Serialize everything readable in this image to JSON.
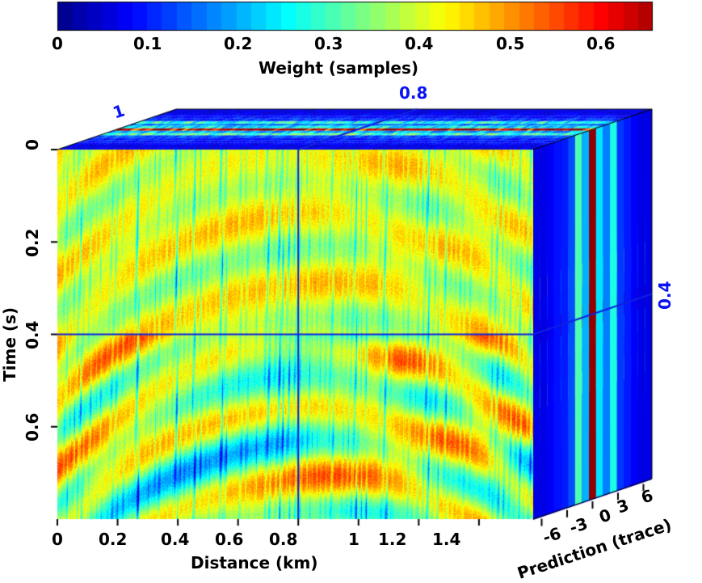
{
  "chart_data": {
    "type": "heatmap",
    "view": "3d-cube",
    "colormap": "jet",
    "colorbar": {
      "label": "Weight (samples)",
      "range": [
        0,
        0.66
      ],
      "ticks": [
        "0",
        "0.1",
        "0.2",
        "0.3",
        "0.4",
        "0.5",
        "0.6"
      ],
      "placement": "top"
    },
    "x_axis": {
      "label": "Distance (km)",
      "range": [
        0,
        1.58
      ],
      "ticks": [
        "0",
        "0.2",
        "0.4",
        "0.6",
        "0.8",
        "1",
        "1.2",
        "1.4"
      ]
    },
    "y_axis": {
      "label": "Time (s)",
      "range": [
        0,
        0.8
      ],
      "ticks": [
        "0",
        "0.2",
        "0.4",
        "0.6"
      ],
      "inverted": true
    },
    "z_axis": {
      "label": "Prediction (trace)",
      "range": [
        -7,
        7
      ],
      "ticks": [
        "-6",
        "-3",
        "0",
        "3",
        "6"
      ]
    },
    "slices": {
      "time": "0.4",
      "distance": "0.8",
      "distance_label_top": "1",
      "prediction": "0"
    }
  }
}
